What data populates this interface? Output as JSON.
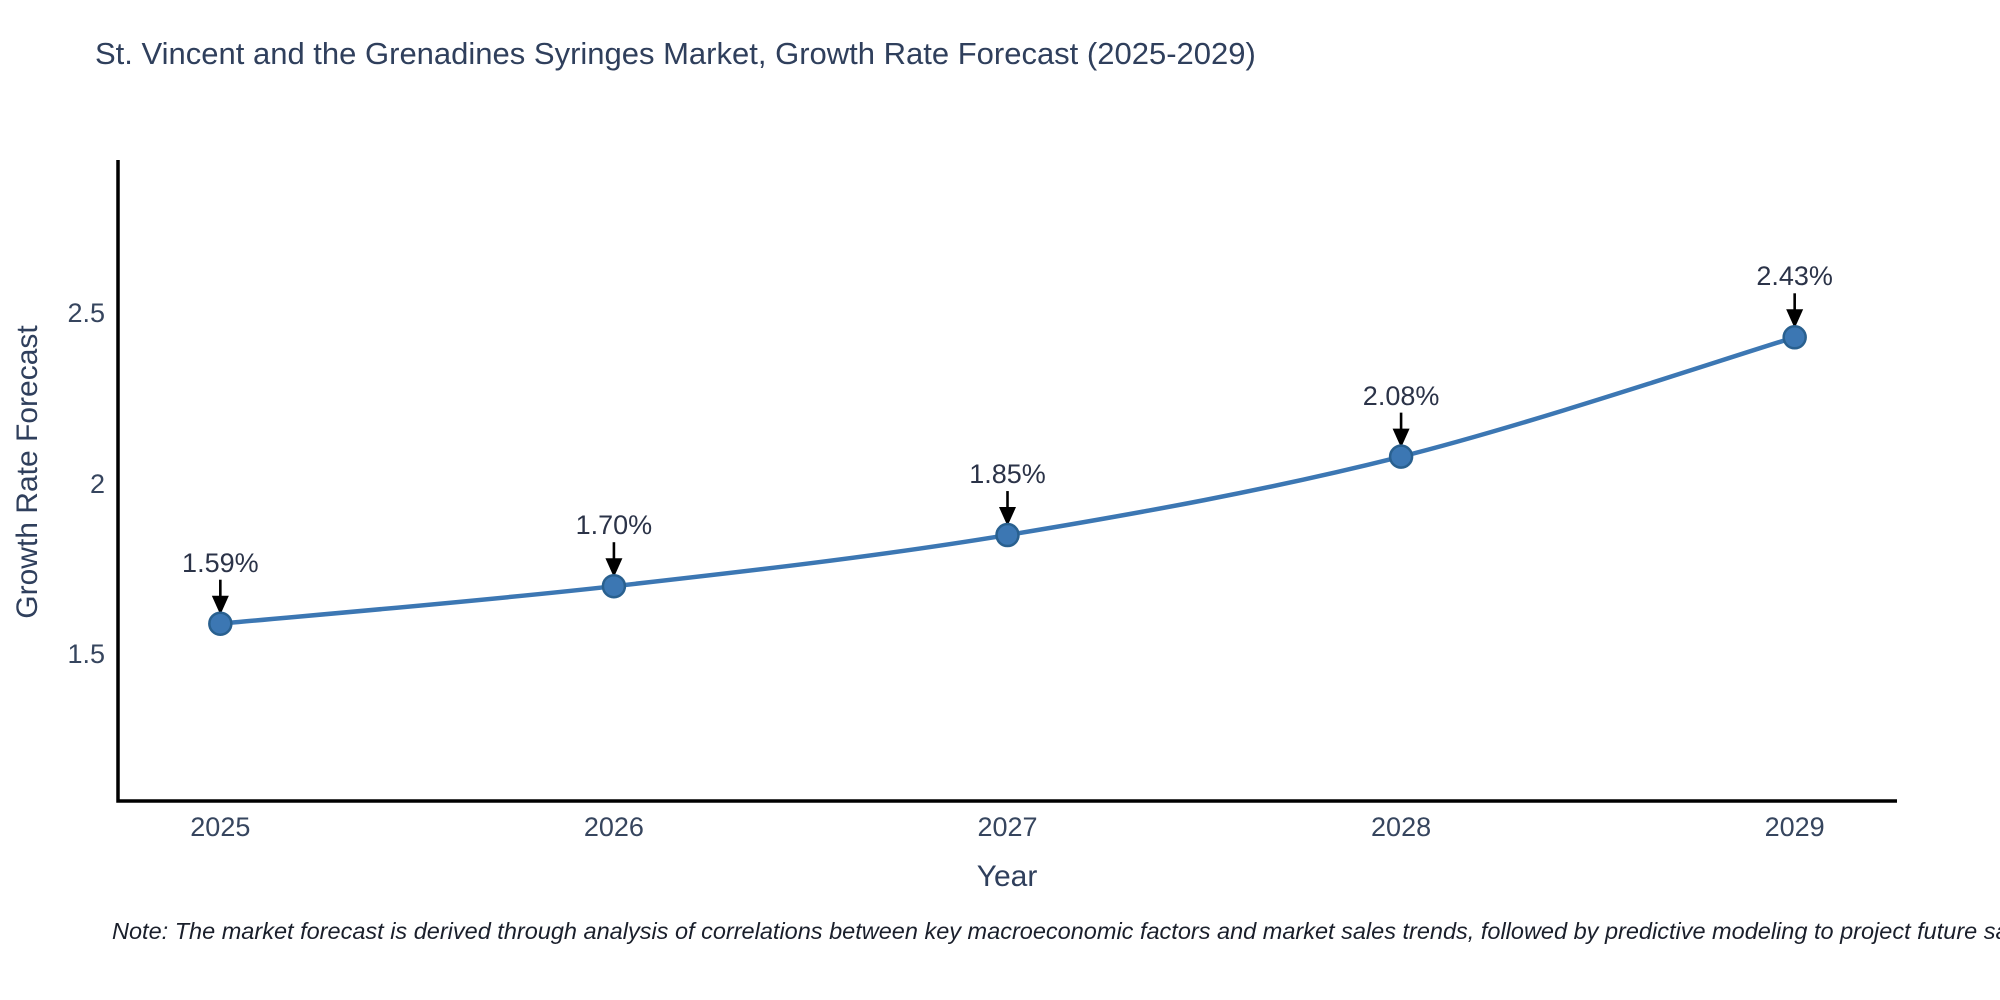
{
  "chart_data": {
    "type": "line",
    "title": "St. Vincent and the Grenadines Syringes Market, Growth Rate Forecast (2025-2029)",
    "xlabel": "Year",
    "ylabel": "Growth Rate Forecast",
    "x": [
      2025,
      2026,
      2027,
      2028,
      2029
    ],
    "values": [
      1.59,
      1.7,
      1.85,
      2.08,
      2.43
    ],
    "point_labels": [
      "1.59%",
      "1.70%",
      "1.85%",
      "2.08%",
      "2.43%"
    ],
    "x_tick_labels": [
      "2025",
      "2026",
      "2027",
      "2028",
      "2029"
    ],
    "y_ticks": [
      1.5,
      2.0,
      2.5
    ],
    "y_tick_labels": [
      "1.5",
      "2",
      "2.5"
    ],
    "xlim": [
      2024.74,
      2029.26
    ],
    "ylim": [
      1.07,
      2.95
    ],
    "grid": false,
    "legend": false,
    "annotation_arrows": true,
    "colors": {
      "line": "#3c77b3",
      "marker_fill": "#3c77b3",
      "marker_edge": "#29608f",
      "axis": "#000000",
      "arrow": "#000000",
      "text": "#2f3f5c"
    }
  },
  "footnote": "Note: The market forecast is derived through analysis of correlations between key macroeconomic factors and market sales trends, followed by predictive modeling to project future sales"
}
